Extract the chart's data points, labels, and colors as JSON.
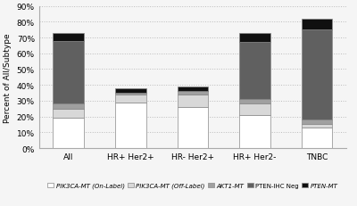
{
  "categories": [
    "All",
    "HR+ Her2+",
    "HR- Her2+",
    "HR+ Her2-",
    "TNBC"
  ],
  "segments": {
    "PIK3CA-MT (On-Label)": [
      19,
      29,
      26,
      21,
      13
    ],
    "PIK3CA-MT (Off-Label)": [
      6,
      5,
      8,
      7,
      2
    ],
    "AKT1-MT": [
      3,
      1,
      2,
      3,
      3
    ],
    "PTEN-IHC Neg": [
      40,
      0,
      0,
      36,
      57
    ],
    "PTEN-MT": [
      5,
      3,
      3,
      6,
      7
    ]
  },
  "colors": {
    "PIK3CA-MT (On-Label)": "#ffffff",
    "PIK3CA-MT (Off-Label)": "#d8d8d8",
    "AKT1-MT": "#a0a0a0",
    "PTEN-IHC Neg": "#606060",
    "PTEN-MT": "#101010"
  },
  "edge_color": "#888888",
  "ylabel": "Percent of All/Subtype",
  "ylim": [
    0,
    90
  ],
  "yticks": [
    0,
    10,
    20,
    30,
    40,
    50,
    60,
    70,
    80,
    90
  ],
  "ytick_labels": [
    "0%",
    "10%",
    "20%",
    "30%",
    "40%",
    "50%",
    "60%",
    "70%",
    "80%",
    "90%"
  ],
  "grid_linestyle": ":",
  "grid_color": "#bbbbbb",
  "bar_width": 0.5,
  "legend_order": [
    "PIK3CA-MT (On-Label)",
    "PIK3CA-MT (Off-Label)",
    "AKT1-MT",
    "PTEN-IHC Neg",
    "PTEN-MT"
  ],
  "legend_italic": [
    true,
    true,
    true,
    false,
    true
  ],
  "legend_ncol": 5,
  "legend_fontsize": 5.0,
  "tick_fontsize": 6.5,
  "ylabel_fontsize": 6.5
}
